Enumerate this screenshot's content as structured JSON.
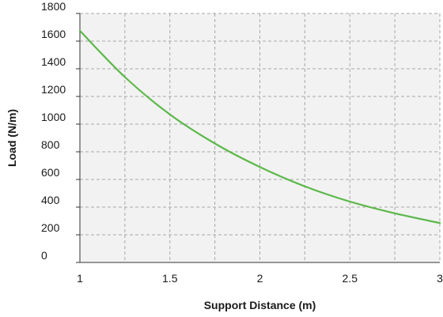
{
  "chart_data": {
    "type": "line",
    "title": "",
    "xlabel": "Support Distance (m)",
    "ylabel": "Load (N/m)",
    "xlim": [
      1,
      3
    ],
    "ylim": [
      0,
      1800
    ],
    "x_ticks": [
      1,
      1.5,
      2,
      2.5,
      3
    ],
    "x_tick_labels": [
      "1",
      "1.5",
      "2",
      "2.5",
      "3"
    ],
    "x_minor_gridlines": [
      1.25,
      1.75,
      2.25,
      2.75
    ],
    "y_ticks": [
      0,
      200,
      400,
      600,
      800,
      1000,
      1200,
      1400,
      1600,
      1800
    ],
    "y_tick_labels": [
      "0",
      "200",
      "400",
      "600",
      "800",
      "1000",
      "1200",
      "1400",
      "1600",
      "1800"
    ],
    "grid": true,
    "grid_style": "dashed",
    "legend": "none",
    "plot_background": "#f2f2f2",
    "series": [
      {
        "color": "#5cb84a",
        "x": [
          1.0,
          1.25,
          1.5,
          1.75,
          2.0,
          2.25,
          2.5,
          2.75,
          3.0
        ],
        "y": [
          1675,
          1340,
          1070,
          860,
          690,
          550,
          440,
          355,
          285
        ]
      }
    ]
  }
}
